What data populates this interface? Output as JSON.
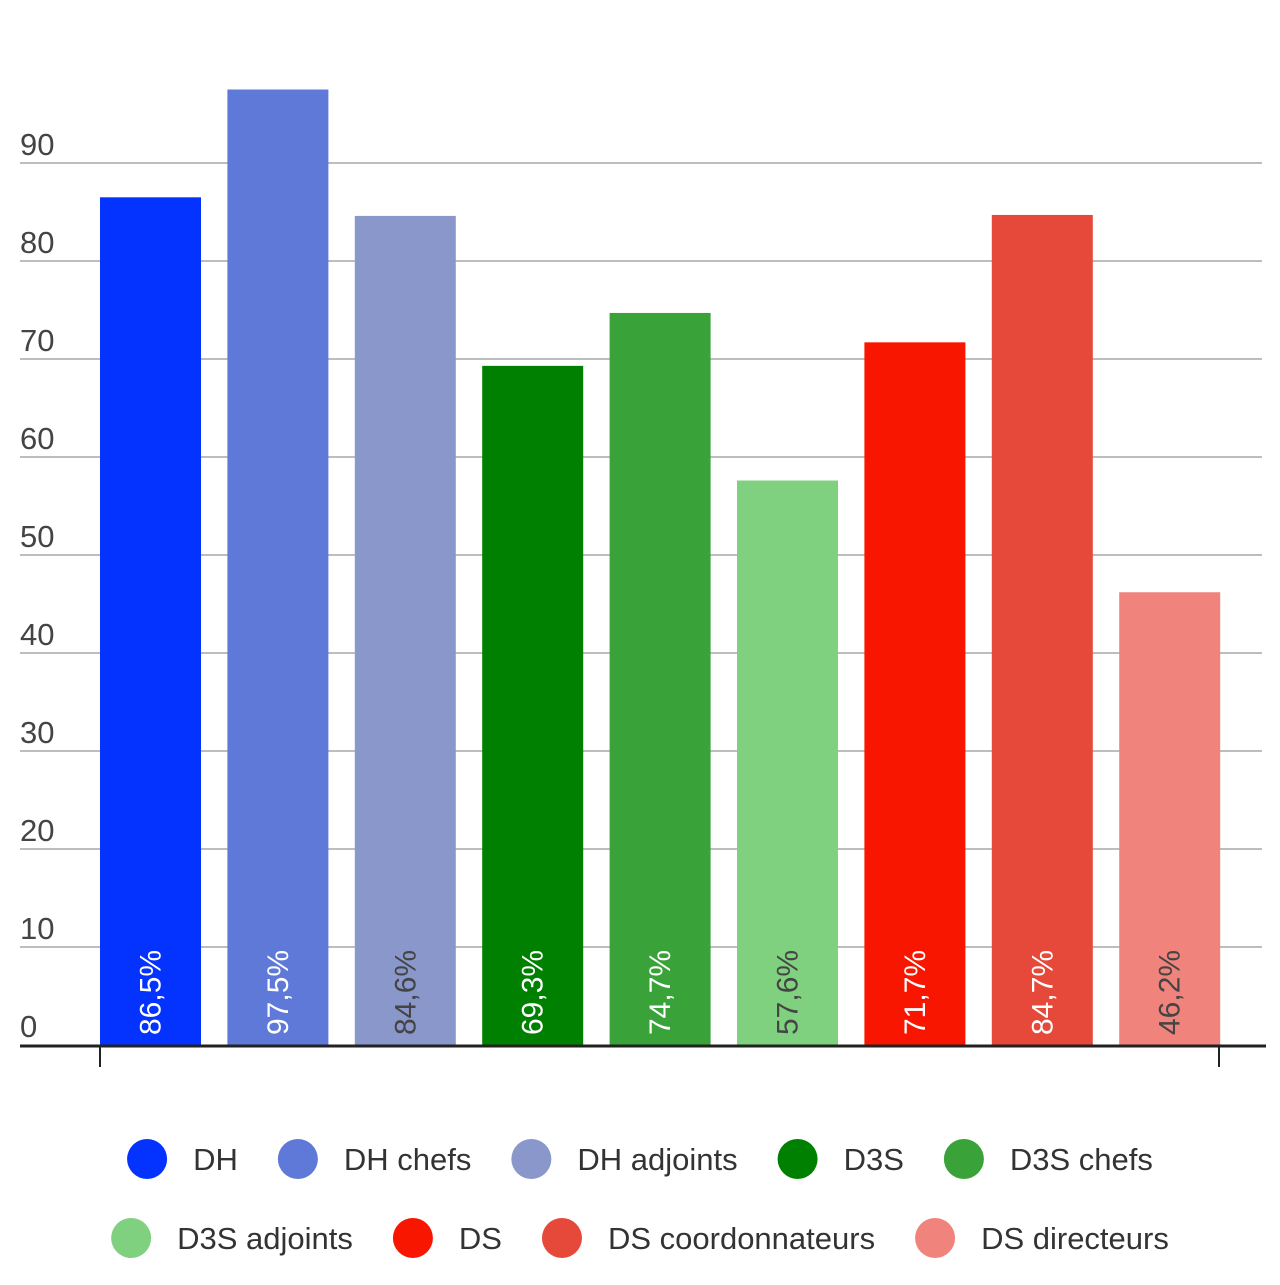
{
  "chart_data": {
    "type": "bar",
    "title": "",
    "xlabel": "",
    "ylabel": "",
    "ylim": [
      0,
      100
    ],
    "yticks": [
      0,
      10,
      20,
      30,
      40,
      50,
      60,
      70,
      80,
      90
    ],
    "grid": true,
    "legend_position": "bottom",
    "categories": [
      "DH",
      "DH chefs",
      "DH adjoints",
      "D3S",
      "D3S chefs",
      "D3S adjoints",
      "DS",
      "DS coordonnateurs",
      "DS directeurs"
    ],
    "values": [
      86.5,
      97.5,
      84.6,
      69.3,
      74.7,
      57.6,
      71.7,
      84.7,
      46.2
    ],
    "data_labels": [
      "86,5%",
      "97,5%",
      "84,6%",
      "69,3%",
      "74,7%",
      "57,6%",
      "71,7%",
      "84,7%",
      "46,2%"
    ],
    "colors": [
      "#0433ff",
      "#5f79d8",
      "#8a97cb",
      "#008000",
      "#39a239",
      "#7fd17f",
      "#f81600",
      "#e6483a",
      "#f0837b"
    ],
    "label_colors": [
      "#ffffff",
      "#ffffff",
      "#444444",
      "#ffffff",
      "#ffffff",
      "#444444",
      "#ffffff",
      "#ffffff",
      "#444444"
    ],
    "legend": [
      {
        "name": "DH",
        "color": "#0433ff"
      },
      {
        "name": "DH chefs",
        "color": "#5f79d8"
      },
      {
        "name": "DH adjoints",
        "color": "#8a97cb"
      },
      {
        "name": "D3S",
        "color": "#008000"
      },
      {
        "name": "D3S chefs",
        "color": "#39a239"
      },
      {
        "name": "D3S adjoints",
        "color": "#7fd17f"
      },
      {
        "name": "DS",
        "color": "#f81600"
      },
      {
        "name": "DS coordonnateurs",
        "color": "#e6483a"
      },
      {
        "name": "DS directeurs",
        "color": "#f0837b"
      }
    ]
  }
}
